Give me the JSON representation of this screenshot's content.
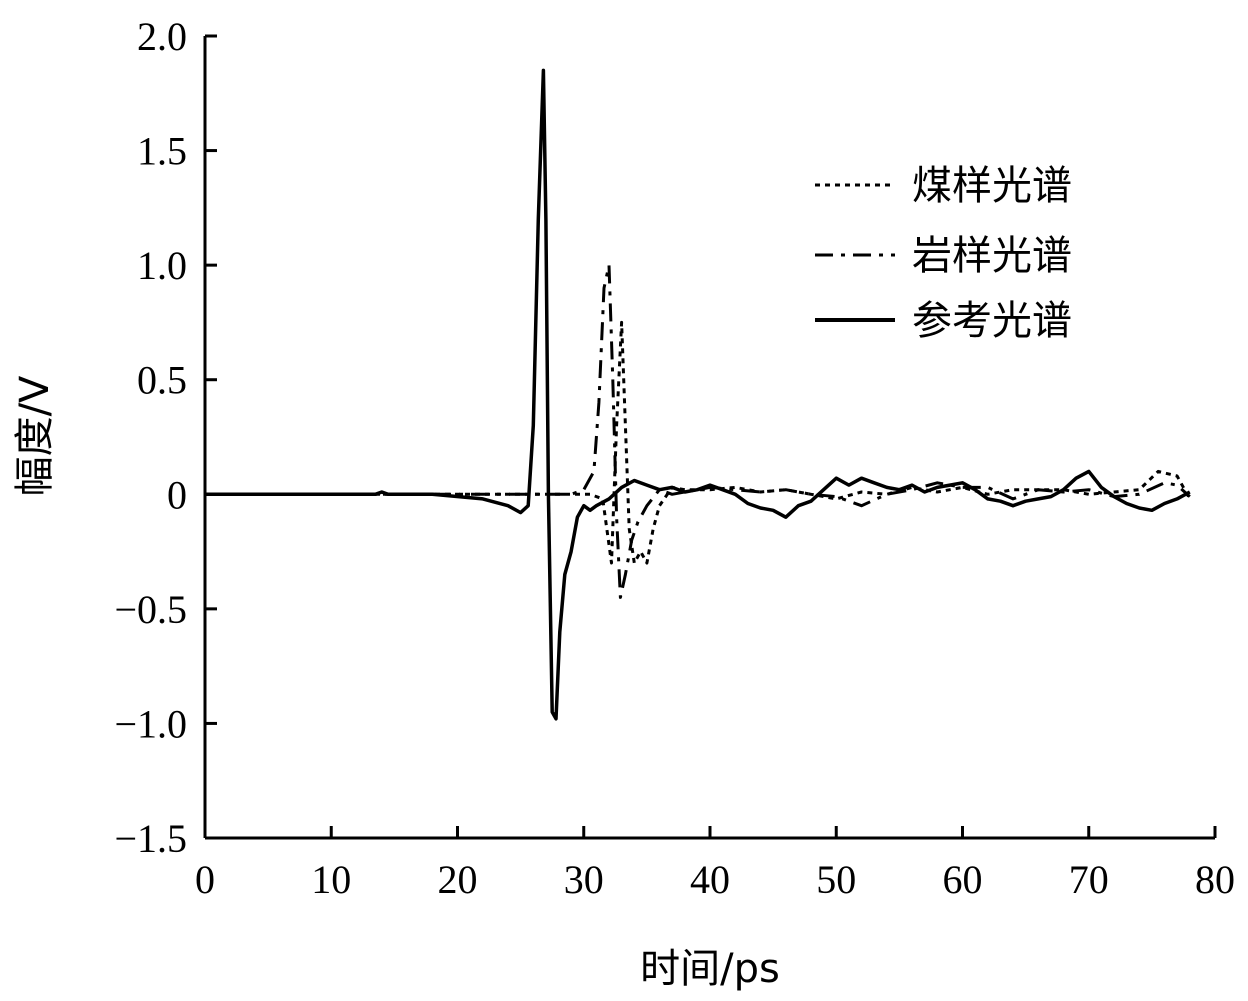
{
  "chart_data": {
    "type": "line",
    "title": "",
    "xlabel": "时间/ps",
    "ylabel": "幅度/V",
    "xlim": [
      0,
      80
    ],
    "ylim": [
      -1.5,
      2.0
    ],
    "xticks": [
      "0",
      "10",
      "20",
      "30",
      "40",
      "50",
      "60",
      "70",
      "80"
    ],
    "yticks": [
      "2.0",
      "1.5",
      "1.0",
      "0.5",
      "0",
      "−0.5",
      "−1.0",
      "−1.5"
    ],
    "grid": false,
    "legend_position": "top-right",
    "series": [
      {
        "name": "煤样光谱",
        "style": "dotted",
        "color": "#000000",
        "x": [
          0,
          14,
          18,
          21,
          24,
          27,
          29,
          30.5,
          31.5,
          32.2,
          32.6,
          33.0,
          33.3,
          33.6,
          34.0,
          34.5,
          35.0,
          35.5,
          36.0,
          37,
          38,
          40,
          42,
          44,
          46,
          48,
          50,
          52,
          54,
          56,
          58,
          60,
          62,
          64,
          66,
          68,
          70,
          72,
          74,
          75.5,
          77,
          78
        ],
        "y": [
          0,
          0,
          0,
          0,
          0,
          0,
          0,
          0,
          -0.02,
          -0.3,
          0.3,
          0.75,
          0.3,
          -0.15,
          -0.3,
          -0.25,
          -0.3,
          -0.15,
          -0.05,
          0.03,
          0.02,
          0.02,
          0.03,
          0.01,
          0.02,
          0.0,
          -0.02,
          0.01,
          0.0,
          0.03,
          0.01,
          0.03,
          0.0,
          0.02,
          0.02,
          0.02,
          0.0,
          0.01,
          0.02,
          0.1,
          0.08,
          -0.02
        ]
      },
      {
        "name": "岩样光谱",
        "style": "dashdot",
        "color": "#000000",
        "x": [
          0,
          14,
          18,
          21,
          24,
          27,
          29,
          30,
          30.8,
          31.2,
          31.6,
          32.0,
          32.3,
          32.6,
          32.9,
          33.3,
          33.8,
          34.3,
          35,
          36,
          37,
          38,
          40,
          42,
          44,
          46,
          48,
          50,
          52,
          54,
          56,
          58,
          60,
          62,
          64,
          66,
          68,
          70,
          72,
          74,
          76,
          77,
          78
        ],
        "y": [
          0,
          0,
          0,
          0,
          0,
          0,
          0,
          0.02,
          0.1,
          0.4,
          0.9,
          1.0,
          0.5,
          -0.1,
          -0.45,
          -0.35,
          -0.2,
          -0.12,
          -0.05,
          0.02,
          0.0,
          0.01,
          0.03,
          0.02,
          0.01,
          0.02,
          0.0,
          -0.01,
          -0.05,
          0.0,
          0.02,
          0.05,
          0.03,
          0.03,
          -0.02,
          0.02,
          0.01,
          0.02,
          -0.01,
          0.0,
          0.05,
          0.04,
          -0.01
        ]
      },
      {
        "name": "参考光谱",
        "style": "solid",
        "color": "#000000",
        "x": [
          0,
          13.5,
          14,
          14.5,
          18,
          22,
          24,
          25,
          25.6,
          26.0,
          26.4,
          26.8,
          27.0,
          27.2,
          27.5,
          27.8,
          28.1,
          28.5,
          29.0,
          29.5,
          30.0,
          30.5,
          31.0,
          32.0,
          33.0,
          34.0,
          35.0,
          36.0,
          37.0,
          38.0,
          39.0,
          40,
          41,
          42,
          43,
          44,
          45,
          46,
          47,
          48,
          49,
          50,
          51,
          52,
          53,
          54,
          55,
          56,
          57,
          58,
          59,
          60,
          61,
          62,
          63,
          64,
          65,
          66,
          67,
          68,
          69,
          70,
          71,
          72,
          73,
          74,
          75,
          76,
          77,
          78
        ],
        "y": [
          0,
          0,
          0.01,
          0,
          0,
          -0.02,
          -0.05,
          -0.08,
          -0.05,
          0.3,
          1.2,
          1.85,
          1.2,
          0.0,
          -0.95,
          -0.98,
          -0.6,
          -0.35,
          -0.25,
          -0.1,
          -0.05,
          -0.07,
          -0.05,
          -0.02,
          0.03,
          0.06,
          0.04,
          0.02,
          0.03,
          0.01,
          0.02,
          0.04,
          0.02,
          0.0,
          -0.04,
          -0.06,
          -0.07,
          -0.1,
          -0.05,
          -0.03,
          0.02,
          0.07,
          0.04,
          0.07,
          0.05,
          0.03,
          0.02,
          0.04,
          0.01,
          0.03,
          0.04,
          0.05,
          0.02,
          -0.02,
          -0.03,
          -0.05,
          -0.03,
          -0.02,
          -0.01,
          0.02,
          0.07,
          0.1,
          0.03,
          -0.01,
          -0.04,
          -0.06,
          -0.07,
          -0.04,
          -0.02,
          0.01
        ]
      }
    ]
  }
}
